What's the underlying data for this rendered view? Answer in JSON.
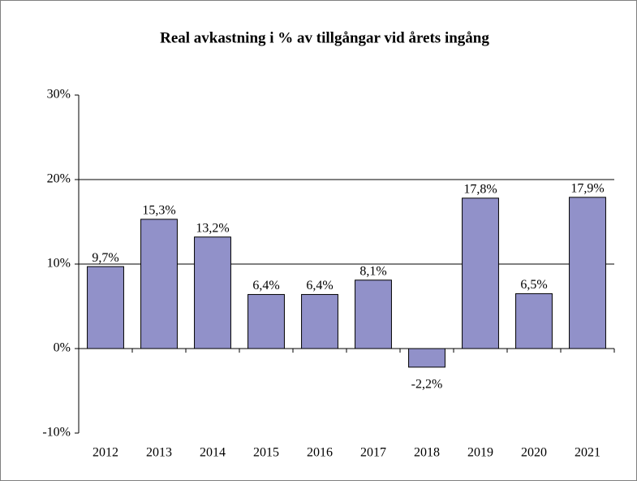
{
  "chart_data": {
    "type": "bar",
    "title": "Real avkastning i % av tillgångar  vid årets ingång",
    "categories": [
      "2012",
      "2013",
      "2014",
      "2015",
      "2016",
      "2017",
      "2018",
      "2019",
      "2020",
      "2021"
    ],
    "values": [
      9.7,
      15.3,
      13.2,
      6.4,
      6.4,
      8.1,
      -2.2,
      17.8,
      6.5,
      17.9
    ],
    "value_labels": [
      "9,7%",
      "15,3%",
      "13,2%",
      "6,4%",
      "6,4%",
      "8,1%",
      "-2,2%",
      "17,8%",
      "6,5%",
      "17,9%"
    ],
    "color": "#9191c9",
    "ylim": [
      -10,
      30
    ],
    "yticks": [
      {
        "value": -10,
        "label": "-10%"
      },
      {
        "value": 0,
        "label": "0%"
      },
      {
        "value": 10,
        "label": "10%"
      },
      {
        "value": 20,
        "label": "20%"
      },
      {
        "value": 30,
        "label": "30%"
      }
    ],
    "grid": true
  }
}
